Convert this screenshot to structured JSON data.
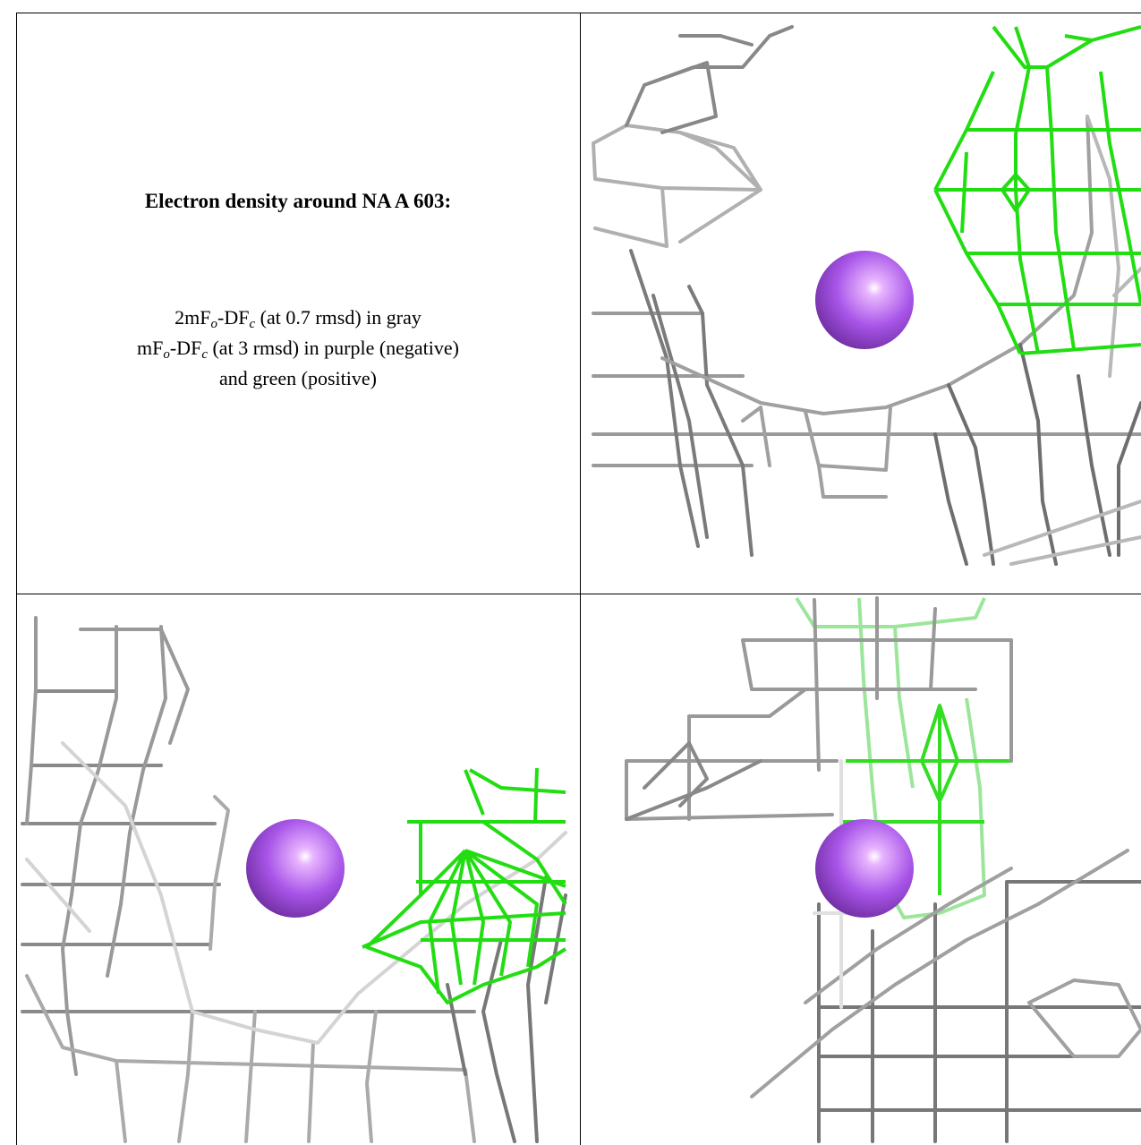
{
  "header": {
    "title": "Electron density around NA A 603:"
  },
  "legend": {
    "lines": [
      [
        "2mF",
        "o",
        "-DF",
        "c",
        " (at 0.7 rmsd) in gray"
      ],
      [
        "mF",
        "o",
        "-DF",
        "c",
        " (at 3 rmsd) in purple (negative)"
      ],
      [
        "and green (positive)"
      ]
    ]
  }
}
